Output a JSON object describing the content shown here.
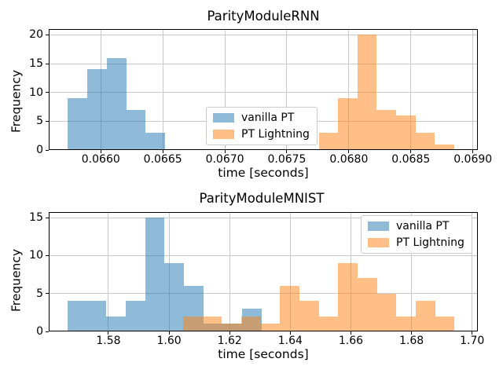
{
  "chart_data": [
    {
      "type": "histogram",
      "title": "ParityModuleRNN",
      "xlabel": "time [seconds]",
      "ylabel": "Frequency",
      "xlim": [
        0.06558,
        0.06904
      ],
      "ylim": [
        0,
        21
      ],
      "xtick_values": [
        0.066,
        0.0665,
        0.067,
        0.0675,
        0.068,
        0.0685,
        0.069
      ],
      "xtick_labels": [
        "0.0660",
        "0.0665",
        "0.0670",
        "0.0675",
        "0.0680",
        "0.0685",
        "0.0690"
      ],
      "ytick_values": [
        0,
        5,
        10,
        15,
        20
      ],
      "ytick_labels": [
        "0",
        "5",
        "10",
        "15",
        "20"
      ],
      "grid": true,
      "legend": {
        "location": "center",
        "entries": [
          {
            "label": "vanilla PT",
            "color": "rgba(31,119,180,0.5)"
          },
          {
            "label": "PT Lightning",
            "color": "rgba(255,127,14,0.5)"
          }
        ]
      },
      "series": [
        {
          "name": "vanilla PT",
          "color": "rgba(31,119,180,0.5)",
          "bin_edges": [
            0.065732,
            0.0658895,
            0.066047,
            0.0662045,
            0.066362,
            0.0665195
          ],
          "counts": [
            9,
            14,
            16,
            7,
            3
          ]
        },
        {
          "name": "PT Lightning",
          "color": "rgba(255,127,14,0.5)",
          "bin_edges": [
            0.067757,
            0.067913,
            0.068069,
            0.068225,
            0.068381,
            0.068537,
            0.068693,
            0.068849
          ],
          "counts": [
            3,
            9,
            20,
            7,
            6,
            3,
            1
          ]
        }
      ]
    },
    {
      "type": "histogram",
      "title": "ParityModuleMNIST",
      "xlabel": "time [seconds]",
      "ylabel": "Frequency",
      "xlim": [
        1.5603,
        1.7019
      ],
      "ylim": [
        0,
        15.75
      ],
      "xtick_values": [
        1.58,
        1.6,
        1.62,
        1.64,
        1.66,
        1.68,
        1.7
      ],
      "xtick_labels": [
        "1.58",
        "1.60",
        "1.62",
        "1.64",
        "1.66",
        "1.68",
        "1.70"
      ],
      "ytick_values": [
        0,
        5,
        10,
        15
      ],
      "ytick_labels": [
        "0",
        "5",
        "10",
        "15"
      ],
      "grid": true,
      "legend": {
        "location": "upper right",
        "entries": [
          {
            "label": "vanilla PT",
            "color": "rgba(31,119,180,0.5)"
          },
          {
            "label": "PT Lightning",
            "color": "rgba(255,127,14,0.5)"
          }
        ]
      },
      "series": [
        {
          "name": "vanilla PT",
          "color": "rgba(31,119,180,0.5)",
          "bin_edges": [
            1.5665,
            1.5729,
            1.5793,
            1.5857,
            1.5921,
            1.5985,
            1.6049,
            1.6113,
            1.6177,
            1.6241,
            1.6305
          ],
          "counts": [
            4,
            4,
            2,
            4,
            15,
            9,
            6,
            1,
            1,
            3
          ]
        },
        {
          "name": "PT Lightning",
          "color": "rgba(255,127,14,0.5)",
          "bin_edges": [
            1.6046,
            1.611,
            1.6174,
            1.6238,
            1.6302,
            1.6366,
            1.643,
            1.6494,
            1.6558,
            1.6622,
            1.6686,
            1.675,
            1.6814,
            1.6878,
            1.6942
          ],
          "counts": [
            2,
            2,
            1,
            2,
            1,
            6,
            4,
            2,
            9,
            7,
            5,
            2,
            4,
            2
          ]
        }
      ]
    }
  ]
}
